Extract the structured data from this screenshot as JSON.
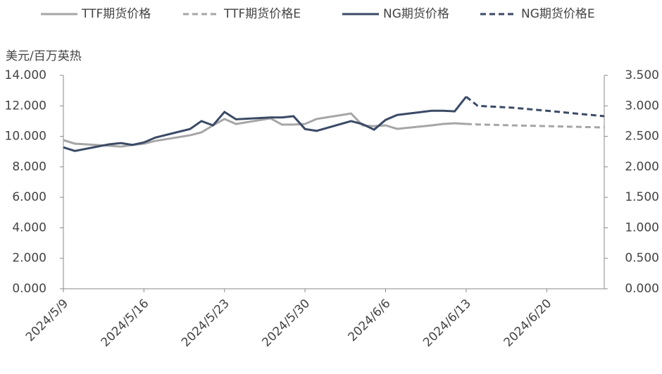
{
  "chart_data": {
    "type": "line",
    "y_label": "美元/百万英热",
    "x": [
      "2024/5/9",
      "2024/5/10",
      "2024/5/13",
      "2024/5/14",
      "2024/5/15",
      "2024/5/16",
      "2024/5/17",
      "2024/5/20",
      "2024/5/21",
      "2024/5/22",
      "2024/5/23",
      "2024/5/24",
      "2024/5/27",
      "2024/5/28",
      "2024/5/29",
      "2024/5/30",
      "2024/5/31",
      "2024/6/3",
      "2024/6/4",
      "2024/6/5",
      "2024/6/6",
      "2024/6/7",
      "2024/6/10",
      "2024/6/11",
      "2024/6/12",
      "2024/6/13",
      "2024/6/14",
      "2024/6/17",
      "2024/6/20",
      "2024/6/25"
    ],
    "series": [
      {
        "name": "TTF期货价格",
        "color": "#a6a6a6",
        "dash": false,
        "axis": "y",
        "values": [
          9.75,
          9.52,
          9.38,
          9.33,
          9.43,
          9.52,
          9.7,
          10.07,
          10.26,
          10.72,
          11.14,
          10.81,
          11.18,
          10.77,
          10.77,
          10.81,
          11.14,
          11.5,
          10.72,
          10.67,
          10.72,
          10.49,
          10.72,
          10.81,
          10.86,
          10.81,
          null,
          null,
          null,
          null
        ]
      },
      {
        "name": "TTF期货价格E",
        "color": "#a6a6a6",
        "dash": true,
        "axis": "y",
        "values": [
          null,
          null,
          null,
          null,
          null,
          null,
          null,
          null,
          null,
          null,
          null,
          null,
          null,
          null,
          null,
          null,
          null,
          null,
          null,
          null,
          null,
          null,
          null,
          null,
          null,
          10.81,
          10.78,
          10.72,
          10.67,
          10.58
        ]
      },
      {
        "name": "NG期货价格",
        "color": "#3b4a66",
        "dash": false,
        "axis": "y2",
        "values": [
          2.32,
          2.26,
          2.37,
          2.39,
          2.36,
          2.4,
          2.48,
          2.62,
          2.75,
          2.68,
          2.9,
          2.78,
          2.81,
          2.81,
          2.83,
          2.62,
          2.59,
          2.75,
          2.7,
          2.61,
          2.77,
          2.85,
          2.92,
          2.92,
          2.91,
          3.15,
          null,
          null,
          null,
          null
        ]
      },
      {
        "name": "NG期货价格E",
        "color": "#3b4a66",
        "dash": true,
        "axis": "y2",
        "values": [
          null,
          null,
          null,
          null,
          null,
          null,
          null,
          null,
          null,
          null,
          null,
          null,
          null,
          null,
          null,
          null,
          null,
          null,
          null,
          null,
          null,
          null,
          null,
          null,
          null,
          3.15,
          3.0,
          2.97,
          2.92,
          2.83
        ]
      }
    ],
    "xlim": [
      "2024/5/9",
      "2024/6/25"
    ],
    "xticks": [
      "2024/5/9",
      "2024/5/16",
      "2024/5/23",
      "2024/5/30",
      "2024/6/6",
      "2024/6/13",
      "2024/6/20"
    ],
    "ylim": [
      0,
      14
    ],
    "yticks": [
      {
        "value": 0,
        "label": "0.000"
      },
      {
        "value": 2,
        "label": "2.000"
      },
      {
        "value": 4,
        "label": "4.000"
      },
      {
        "value": 6,
        "label": "6.000"
      },
      {
        "value": 8,
        "label": "8.000"
      },
      {
        "value": 10,
        "label": "10.000"
      },
      {
        "value": 12,
        "label": "12.000"
      },
      {
        "value": 14,
        "label": "14.000"
      }
    ],
    "y2lim": [
      0,
      3.5
    ],
    "y2ticks": [
      {
        "value": 0,
        "label": "0.000"
      },
      {
        "value": 0.5,
        "label": "0.500"
      },
      {
        "value": 1,
        "label": "1.000"
      },
      {
        "value": 1.5,
        "label": "1.500"
      },
      {
        "value": 2,
        "label": "2.000"
      },
      {
        "value": 2.5,
        "label": "2.500"
      },
      {
        "value": 3,
        "label": "3.000"
      },
      {
        "value": 3.5,
        "label": "3.500"
      }
    ],
    "grid": false,
    "legend": "top"
  }
}
